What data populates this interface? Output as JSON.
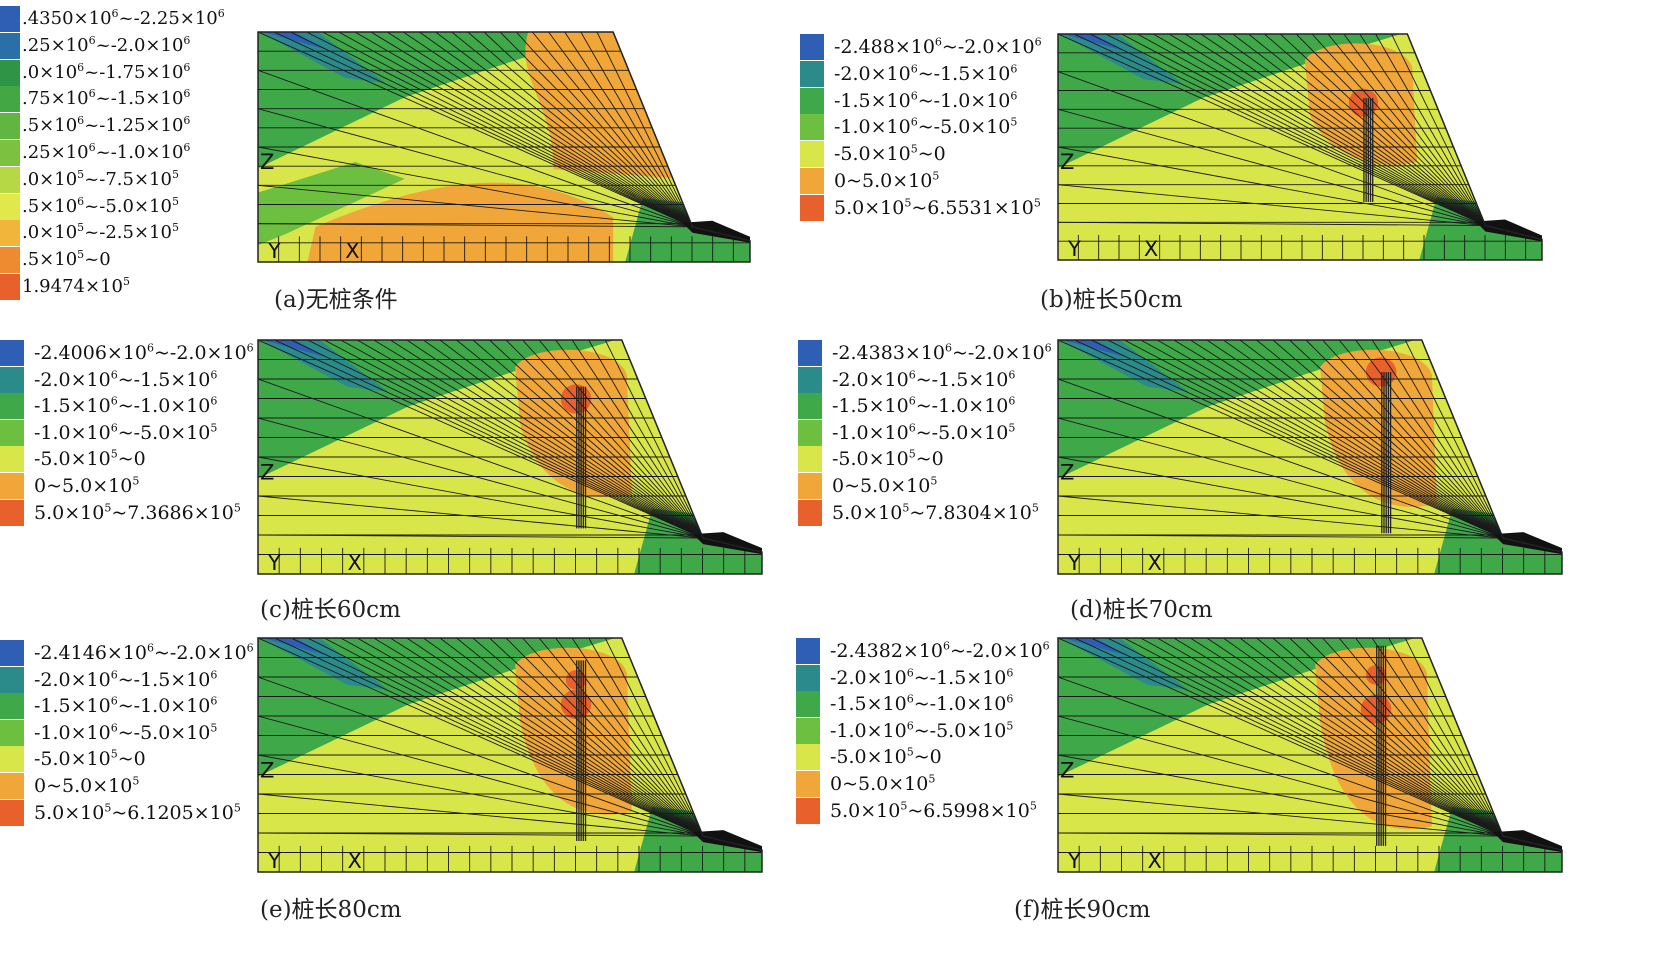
{
  "palette": [
    "#2f5fb4",
    "#2b8a8a",
    "#3fa848",
    "#6cbf3f",
    "#d9e64a",
    "#f0a638",
    "#e8602c"
  ],
  "palette_a": [
    "#2f5fb4",
    "#2b6fa8",
    "#2f9446",
    "#43a844",
    "#60b640",
    "#7cc240",
    "#b6d845",
    "#e0e84c",
    "#f2b53c",
    "#ee8a30",
    "#e8602c"
  ],
  "axes": {
    "z": "Z",
    "y": "Y",
    "x": "X"
  },
  "panels": [
    {
      "id": "a",
      "caption": "(a)无桩条件",
      "legend": [
        ".4350×10^6~-2.25×10^6",
        ".25×10^6~-2.0×10^6",
        ".0×10^6~-1.75×10^6",
        ".75×10^6~-1.5×10^6",
        ".5×10^6~-1.25×10^6",
        ".25×10^6~-1.0×10^6",
        ".0×10^5~-7.5×10^5",
        ".5×10^6~-5.0×10^5",
        ".0×10^5~-2.5×10^5",
        ".5×10^5~0",
        "1.9474×10^5"
      ]
    },
    {
      "id": "b",
      "caption": "(b)桩长50cm",
      "legend": [
        "-2.488×10^6~-2.0×10^6",
        "-2.0×10^6~-1.5×10^6",
        "-1.5×10^6~-1.0×10^6",
        "-1.0×10^6~-5.0×10^5",
        "-5.0×10^5~0",
        "0~5.0×10^5",
        "5.0×10^5~6.5531×10^5"
      ]
    },
    {
      "id": "c",
      "caption": "(c)桩长60cm",
      "legend": [
        "-2.4006×10^6~-2.0×10^6",
        "-2.0×10^6~-1.5×10^6",
        "-1.5×10^6~-1.0×10^6",
        "-1.0×10^6~-5.0×10^5",
        "-5.0×10^5~0",
        "0~5.0×10^5",
        "5.0×10^5~7.3686×10^5"
      ]
    },
    {
      "id": "d",
      "caption": "(d)桩长70cm",
      "legend": [
        "-2.4383×10^6~-2.0×10^6",
        "-2.0×10^6~-1.5×10^6",
        "-1.5×10^6~-1.0×10^6",
        "-1.0×10^6~-5.0×10^5",
        "-5.0×10^5~0",
        "0~5.0×10^5",
        "5.0×10^5~7.8304×10^5"
      ]
    },
    {
      "id": "e",
      "caption": "(e)桩长80cm",
      "legend": [
        "-2.4146×10^6~-2.0×10^6",
        "-2.0×10^6~-1.5×10^6",
        "-1.5×10^6~-1.0×10^6",
        "-1.0×10^6~-5.0×10^5",
        "-5.0×10^5~0",
        "0~5.0×10^5",
        "5.0×10^5~6.1205×10^5"
      ]
    },
    {
      "id": "f",
      "caption": "(f)桩长90cm",
      "legend": [
        "-2.4382×10^6~-2.0×10^6",
        "-2.0×10^6~-1.5×10^6",
        "-1.5×10^6~-1.0×10^6",
        "-1.0×10^6~-5.0×10^5",
        "-5.0×10^5~0",
        "0~5.0×10^5",
        "5.0×10^5~6.5998×10^5"
      ]
    }
  ]
}
